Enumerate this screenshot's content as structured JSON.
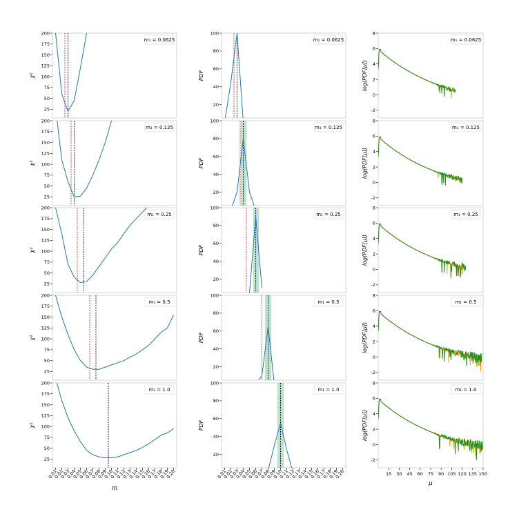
{
  "figure": {
    "x_tick_labels_m": [
      "0.01",
      "0.02",
      "0.03",
      "0.04",
      "0.05",
      "0.06",
      "0.07",
      "0.08",
      "0.09",
      "0.10",
      "0.11",
      "0.12",
      "0.13",
      "0.14",
      "0.15",
      "0.16",
      "0.17",
      "0.18",
      "0.19",
      "0.20"
    ],
    "x_tick_labels_mu": [
      "15",
      "30",
      "45",
      "60",
      "75",
      "90",
      "105",
      "120",
      "135",
      "150"
    ],
    "col1_ylabel": "χ²",
    "col2_ylabel": "PDF",
    "col3_ylabel": "log(PDF[μ])",
    "col1_xlabel": "m",
    "col3_xlabel": "μ",
    "colors": {
      "blue_line": "#1f77b4",
      "red_dash": "#d62728",
      "navy_dash": "#00008b",
      "green_band": "#2ca02c",
      "green_line": "#228B22",
      "orange_line": "#FFA500"
    }
  },
  "chart_data": [
    {
      "type": "line",
      "row": 0,
      "col": 0,
      "legend": "m₁ = 0.0625",
      "x": [
        0.01,
        0.02,
        0.03,
        0.04,
        0.05,
        0.06
      ],
      "y": [
        200,
        60,
        20,
        45,
        120,
        200
      ],
      "red_line": 0.025,
      "navy_line": 0.03,
      "xlim": [
        0.005,
        0.205
      ],
      "ylim": [
        5,
        200
      ],
      "yticks": [
        25,
        50,
        75,
        100,
        125,
        150,
        175,
        200
      ]
    },
    {
      "type": "line",
      "row": 0,
      "col": 1,
      "legend": "m₁ = 0.0625",
      "x": [
        0.01,
        0.02,
        0.03,
        0.04
      ],
      "y": [
        0,
        45,
        100,
        0
      ],
      "red_line": 0.025,
      "navy_line": 0.03,
      "band": null,
      "xlim": [
        0.005,
        0.205
      ],
      "ylim": [
        5,
        100
      ],
      "yticks": [
        20,
        40,
        60,
        80,
        100
      ]
    },
    {
      "type": "line",
      "row": 0,
      "col": 2,
      "legend": "m₁ = 0.0625",
      "series": [
        {
          "name": "",
          "color": "orange"
        },
        {
          "name": "",
          "color": "green"
        }
      ],
      "xlim": [
        0,
        150
      ],
      "ylim": [
        -3,
        8
      ],
      "yticks": [
        -2,
        0,
        2,
        4,
        6,
        8
      ],
      "end_mu": 110
    },
    {
      "type": "line",
      "row": 1,
      "col": 0,
      "legend": "m₁ = 0.125",
      "x": [
        0.01,
        0.02,
        0.03,
        0.04,
        0.05,
        0.06,
        0.07,
        0.08,
        0.09,
        0.1
      ],
      "y": [
        230,
        110,
        60,
        25,
        27,
        45,
        75,
        110,
        150,
        200
      ],
      "red_line": 0.035,
      "navy_line": 0.04,
      "xlim": [
        0.005,
        0.205
      ],
      "ylim": [
        5,
        200
      ],
      "yticks": [
        25,
        50,
        75,
        100,
        125,
        150,
        175,
        200
      ]
    },
    {
      "type": "line",
      "row": 1,
      "col": 1,
      "legend": "m₁ = 0.125",
      "x": [
        0.02,
        0.03,
        0.04,
        0.05,
        0.06
      ],
      "y": [
        0,
        20,
        80,
        20,
        0
      ],
      "red_line": 0.035,
      "navy_line": 0.04,
      "band": [
        0.036,
        0.045
      ],
      "xlim": [
        0.005,
        0.205
      ],
      "ylim": [
        5,
        100
      ],
      "yticks": [
        20,
        40,
        60,
        80,
        100
      ]
    },
    {
      "type": "line",
      "row": 1,
      "col": 2,
      "legend": "m₁ = 0.125",
      "series": [
        {
          "name": "",
          "color": "orange"
        },
        {
          "name": "",
          "color": "green"
        }
      ],
      "xlim": [
        0,
        150
      ],
      "ylim": [
        -3,
        8
      ],
      "yticks": [
        -2,
        0,
        2,
        4,
        6,
        8
      ],
      "end_mu": 120
    },
    {
      "type": "line",
      "row": 2,
      "col": 0,
      "legend": "m₁ = 0.25",
      "x": [
        0.01,
        0.02,
        0.03,
        0.04,
        0.05,
        0.06,
        0.07,
        0.08,
        0.09,
        0.1,
        0.11,
        0.12,
        0.13,
        0.14,
        0.15,
        0.16
      ],
      "y": [
        200,
        140,
        70,
        40,
        28,
        30,
        45,
        65,
        85,
        105,
        120,
        140,
        160,
        175,
        190,
        205
      ],
      "red_line": 0.045,
      "navy_line": 0.055,
      "xlim": [
        0.005,
        0.205
      ],
      "ylim": [
        5,
        200
      ],
      "yticks": [
        25,
        50,
        75,
        100,
        125,
        150,
        175,
        200
      ]
    },
    {
      "type": "line",
      "row": 2,
      "col": 1,
      "legend": "m₁ = 0.25",
      "x": [
        0.04,
        0.05,
        0.06,
        0.07
      ],
      "y": [
        0,
        5,
        90,
        10
      ],
      "red_line": 0.045,
      "navy_line": 0.06,
      "band": [
        0.056,
        0.065
      ],
      "xlim": [
        0.005,
        0.205
      ],
      "ylim": [
        5,
        100
      ],
      "yticks": [
        20,
        40,
        60,
        80,
        100
      ]
    },
    {
      "type": "line",
      "row": 2,
      "col": 2,
      "legend": "m₁ = 0.25",
      "series": [
        {
          "name": "",
          "color": "orange"
        },
        {
          "name": "",
          "color": "green"
        }
      ],
      "xlim": [
        0,
        150
      ],
      "ylim": [
        -3,
        8
      ],
      "yticks": [
        -2,
        0,
        2,
        4,
        6,
        8
      ],
      "end_mu": 125
    },
    {
      "type": "line",
      "row": 3,
      "col": 0,
      "legend": "m₁ = 0.5",
      "x": [
        0.01,
        0.02,
        0.03,
        0.04,
        0.05,
        0.06,
        0.07,
        0.08,
        0.09,
        0.1,
        0.11,
        0.12,
        0.13,
        0.14,
        0.15,
        0.16,
        0.17,
        0.18,
        0.19,
        0.2
      ],
      "y": [
        200,
        150,
        110,
        75,
        50,
        35,
        30,
        30,
        35,
        40,
        45,
        50,
        58,
        65,
        75,
        85,
        100,
        115,
        125,
        155
      ],
      "red_line": 0.065,
      "navy_line": 0.075,
      "xlim": [
        0.005,
        0.205
      ],
      "ylim": [
        5,
        200
      ],
      "yticks": [
        25,
        50,
        75,
        100,
        125,
        150,
        175,
        200
      ]
    },
    {
      "type": "line",
      "row": 3,
      "col": 1,
      "legend": "m₁ = 0.5",
      "x": [
        0.06,
        0.07,
        0.08,
        0.09
      ],
      "y": [
        0,
        10,
        65,
        0
      ],
      "red_line": 0.07,
      "navy_line": 0.08,
      "band": [
        0.075,
        0.085
      ],
      "xlim": [
        0.005,
        0.205
      ],
      "ylim": [
        5,
        100
      ],
      "yticks": [
        20,
        40,
        60,
        80,
        100
      ]
    },
    {
      "type": "line",
      "row": 3,
      "col": 2,
      "legend": "m₁ = 0.5",
      "series": [
        {
          "name": "",
          "color": "orange"
        },
        {
          "name": "",
          "color": "green"
        }
      ],
      "xlim": [
        0,
        150
      ],
      "ylim": [
        -3,
        8
      ],
      "yticks": [
        -2,
        0,
        2,
        4,
        6,
        8
      ],
      "end_mu": 148
    },
    {
      "type": "line",
      "row": 4,
      "col": 0,
      "legend": "m₁ = 1.0",
      "x": [
        0.01,
        0.02,
        0.03,
        0.04,
        0.05,
        0.06,
        0.07,
        0.08,
        0.09,
        0.1,
        0.11,
        0.12,
        0.13,
        0.14,
        0.15,
        0.16,
        0.17,
        0.18,
        0.19,
        0.2
      ],
      "y": [
        210,
        160,
        120,
        90,
        65,
        45,
        35,
        30,
        28,
        28,
        30,
        35,
        40,
        45,
        52,
        60,
        70,
        80,
        85,
        95
      ],
      "red_line": 0.095,
      "navy_line": 0.095,
      "xlim": [
        0.005,
        0.205
      ],
      "ylim": [
        5,
        200
      ],
      "yticks": [
        25,
        50,
        75,
        100,
        125,
        150,
        175,
        200
      ]
    },
    {
      "type": "line",
      "row": 4,
      "col": 1,
      "legend": "m₁ = 1.0",
      "x": [
        0.06,
        0.07,
        0.08,
        0.09,
        0.1,
        0.11,
        0.12
      ],
      "y": [
        0,
        0,
        2,
        30,
        55,
        25,
        0
      ],
      "red_line": 0.1,
      "navy_line": 0.1,
      "band": [
        0.095,
        0.105
      ],
      "xlim": [
        0.005,
        0.205
      ],
      "ylim": [
        5,
        100
      ],
      "yticks": [
        20,
        40,
        60,
        80,
        100
      ]
    },
    {
      "type": "line",
      "row": 4,
      "col": 2,
      "legend": "m₁ = 1.0",
      "series": [
        {
          "name": "",
          "color": "orange"
        },
        {
          "name": "",
          "color": "green"
        }
      ],
      "xlim": [
        0,
        150
      ],
      "ylim": [
        -3,
        8
      ],
      "yticks": [
        -2,
        0,
        2,
        4,
        6,
        8
      ],
      "end_mu": 150
    }
  ]
}
